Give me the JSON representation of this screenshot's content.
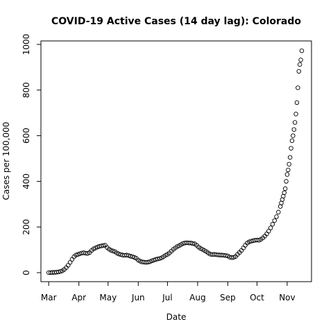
{
  "chart_data": {
    "type": "scatter",
    "title": "COVID-19 Active Cases (14 day lag): Colorado",
    "xlabel": "Date",
    "ylabel": "Cases per 100,000",
    "ylim": [
      0,
      1000
    ],
    "y_ticks": [
      0,
      200,
      400,
      600,
      800,
      1000
    ],
    "x_ticks": [
      {
        "label": "Mar",
        "date": "2020-03-01"
      },
      {
        "label": "Apr",
        "date": "2020-04-01"
      },
      {
        "label": "May",
        "date": "2020-05-01"
      },
      {
        "label": "Jun",
        "date": "2020-06-01"
      },
      {
        "label": "Jul",
        "date": "2020-07-01"
      },
      {
        "label": "Aug",
        "date": "2020-08-01"
      },
      {
        "label": "Sep",
        "date": "2020-09-01"
      },
      {
        "label": "Oct",
        "date": "2020-10-01"
      },
      {
        "label": "Nov",
        "date": "2020-11-01"
      }
    ],
    "xlim": [
      "2020-02-22",
      "2020-11-26"
    ],
    "grid": false,
    "marker": "open-circle",
    "points": [
      [
        "2020-03-01",
        0
      ],
      [
        "2020-03-03",
        0
      ],
      [
        "2020-03-05",
        1
      ],
      [
        "2020-03-07",
        1
      ],
      [
        "2020-03-09",
        2
      ],
      [
        "2020-03-11",
        3
      ],
      [
        "2020-03-13",
        5
      ],
      [
        "2020-03-15",
        8
      ],
      [
        "2020-03-17",
        14
      ],
      [
        "2020-03-19",
        22
      ],
      [
        "2020-03-21",
        32
      ],
      [
        "2020-03-23",
        45
      ],
      [
        "2020-03-25",
        58
      ],
      [
        "2020-03-27",
        70
      ],
      [
        "2020-03-29",
        77
      ],
      [
        "2020-03-31",
        80
      ],
      [
        "2020-04-02",
        83
      ],
      [
        "2020-04-04",
        86
      ],
      [
        "2020-04-06",
        87
      ],
      [
        "2020-04-08",
        85
      ],
      [
        "2020-04-10",
        84
      ],
      [
        "2020-04-12",
        88
      ],
      [
        "2020-04-14",
        97
      ],
      [
        "2020-04-16",
        104
      ],
      [
        "2020-04-18",
        108
      ],
      [
        "2020-04-20",
        112
      ],
      [
        "2020-04-22",
        115
      ],
      [
        "2020-04-24",
        117
      ],
      [
        "2020-04-26",
        119
      ],
      [
        "2020-04-28",
        120
      ],
      [
        "2020-04-30",
        110
      ],
      [
        "2020-05-02",
        103
      ],
      [
        "2020-05-04",
        98
      ],
      [
        "2020-05-06",
        95
      ],
      [
        "2020-05-08",
        92
      ],
      [
        "2020-05-10",
        86
      ],
      [
        "2020-05-12",
        82
      ],
      [
        "2020-05-14",
        79
      ],
      [
        "2020-05-16",
        77
      ],
      [
        "2020-05-18",
        76
      ],
      [
        "2020-05-20",
        77
      ],
      [
        "2020-05-22",
        75
      ],
      [
        "2020-05-24",
        72
      ],
      [
        "2020-05-26",
        70
      ],
      [
        "2020-05-28",
        67
      ],
      [
        "2020-05-30",
        63
      ],
      [
        "2020-06-01",
        55
      ],
      [
        "2020-06-03",
        50
      ],
      [
        "2020-06-05",
        47
      ],
      [
        "2020-06-07",
        46
      ],
      [
        "2020-06-09",
        45
      ],
      [
        "2020-06-11",
        46
      ],
      [
        "2020-06-13",
        48
      ],
      [
        "2020-06-15",
        52
      ],
      [
        "2020-06-17",
        55
      ],
      [
        "2020-06-19",
        58
      ],
      [
        "2020-06-21",
        60
      ],
      [
        "2020-06-23",
        62
      ],
      [
        "2020-06-25",
        65
      ],
      [
        "2020-06-27",
        70
      ],
      [
        "2020-06-29",
        76
      ],
      [
        "2020-07-01",
        80
      ],
      [
        "2020-07-03",
        86
      ],
      [
        "2020-07-05",
        94
      ],
      [
        "2020-07-07",
        102
      ],
      [
        "2020-07-09",
        108
      ],
      [
        "2020-07-11",
        114
      ],
      [
        "2020-07-13",
        118
      ],
      [
        "2020-07-15",
        123
      ],
      [
        "2020-07-17",
        128
      ],
      [
        "2020-07-19",
        130
      ],
      [
        "2020-07-21",
        131
      ],
      [
        "2020-07-23",
        130
      ],
      [
        "2020-07-25",
        130
      ],
      [
        "2020-07-27",
        128
      ],
      [
        "2020-07-29",
        126
      ],
      [
        "2020-07-31",
        120
      ],
      [
        "2020-08-02",
        112
      ],
      [
        "2020-08-04",
        106
      ],
      [
        "2020-08-06",
        102
      ],
      [
        "2020-08-08",
        97
      ],
      [
        "2020-08-10",
        92
      ],
      [
        "2020-08-12",
        86
      ],
      [
        "2020-08-14",
        81
      ],
      [
        "2020-08-16",
        79
      ],
      [
        "2020-08-18",
        80
      ],
      [
        "2020-08-20",
        79
      ],
      [
        "2020-08-22",
        78
      ],
      [
        "2020-08-24",
        77
      ],
      [
        "2020-08-26",
        77
      ],
      [
        "2020-08-28",
        76
      ],
      [
        "2020-08-30",
        75
      ],
      [
        "2020-09-01",
        73
      ],
      [
        "2020-09-03",
        68
      ],
      [
        "2020-09-05",
        66
      ],
      [
        "2020-09-07",
        67
      ],
      [
        "2020-09-09",
        71
      ],
      [
        "2020-09-11",
        80
      ],
      [
        "2020-09-13",
        88
      ],
      [
        "2020-09-15",
        97
      ],
      [
        "2020-09-17",
        108
      ],
      [
        "2020-09-19",
        120
      ],
      [
        "2020-09-21",
        130
      ],
      [
        "2020-09-23",
        135
      ],
      [
        "2020-09-25",
        138
      ],
      [
        "2020-09-27",
        140
      ],
      [
        "2020-09-29",
        142
      ],
      [
        "2020-10-01",
        143
      ],
      [
        "2020-10-03",
        142
      ],
      [
        "2020-10-05",
        146
      ],
      [
        "2020-10-07",
        152
      ],
      [
        "2020-10-09",
        160
      ],
      [
        "2020-10-11",
        170
      ],
      [
        "2020-10-13",
        182
      ],
      [
        "2020-10-15",
        196
      ],
      [
        "2020-10-17",
        212
      ],
      [
        "2020-10-19",
        228
      ],
      [
        "2020-10-21",
        245
      ],
      [
        "2020-10-23",
        265
      ],
      [
        "2020-10-25",
        290
      ],
      [
        "2020-10-26",
        305
      ],
      [
        "2020-10-27",
        320
      ],
      [
        "2020-10-28",
        335
      ],
      [
        "2020-10-29",
        350
      ],
      [
        "2020-10-30",
        368
      ],
      [
        "2020-10-31",
        400
      ],
      [
        "2020-11-01",
        430
      ],
      [
        "2020-11-02",
        450
      ],
      [
        "2020-11-03",
        475
      ],
      [
        "2020-11-04",
        505
      ],
      [
        "2020-11-05",
        545
      ],
      [
        "2020-11-06",
        578
      ],
      [
        "2020-11-07",
        600
      ],
      [
        "2020-11-08",
        627
      ],
      [
        "2020-11-09",
        658
      ],
      [
        "2020-11-10",
        695
      ],
      [
        "2020-11-11",
        745
      ],
      [
        "2020-11-12",
        810
      ],
      [
        "2020-11-13",
        882
      ],
      [
        "2020-11-14",
        912
      ],
      [
        "2020-11-15",
        932
      ],
      [
        "2020-11-16",
        972
      ]
    ]
  }
}
